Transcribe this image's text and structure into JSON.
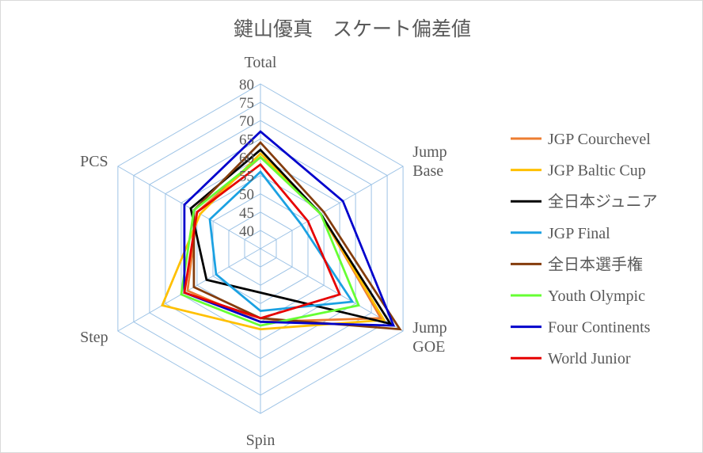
{
  "chart_data": {
    "type": "radar",
    "title": "鍵山優真　スケート偏差値",
    "axes": [
      "Total",
      "Jump Base",
      "Jump GOE",
      "Spin",
      "Step",
      "PCS"
    ],
    "axis_label_lines": [
      [
        "Total"
      ],
      [
        "Jump",
        "Base"
      ],
      [
        "Jump",
        "GOE"
      ],
      [
        "Spin"
      ],
      [
        "Step"
      ],
      [
        "PCS"
      ]
    ],
    "rlim": [
      35,
      80
    ],
    "ticks": [
      40,
      45,
      50,
      55,
      60,
      65,
      70,
      75,
      80
    ],
    "tick_labels": [
      "40",
      "45",
      "50",
      "55",
      "60",
      "65",
      "70",
      "75",
      "80"
    ],
    "grid": true,
    "legend": "right",
    "series": [
      {
        "name": "JGP Courchevel",
        "color": "#ed7d31",
        "values": [
          60,
          54,
          73,
          55,
          58,
          55
        ]
      },
      {
        "name": "JGP Baltic Cup",
        "color": "#ffc000",
        "values": [
          61,
          54,
          74,
          57,
          66,
          54
        ]
      },
      {
        "name": "全日本ジュニア",
        "color": "#000000",
        "values": [
          62,
          54,
          76,
          47,
          52,
          57
        ]
      },
      {
        "name": "JGP Final",
        "color": "#1ba1e2",
        "values": [
          56,
          48,
          64,
          52,
          49,
          51
        ]
      },
      {
        "name": "全日本選手権",
        "color": "#843c0c",
        "values": [
          64,
          55,
          79,
          54,
          56,
          56
        ]
      },
      {
        "name": "Youth Olympic",
        "color": "#66ff33",
        "values": [
          60,
          54,
          66,
          56,
          60,
          56
        ]
      },
      {
        "name": "Four Continents",
        "color": "#0000cc",
        "values": [
          67,
          61,
          77,
          55,
          59,
          59
        ]
      },
      {
        "name": "World Junior",
        "color": "#e60000",
        "values": [
          58,
          50,
          60,
          54,
          59,
          55
        ]
      }
    ]
  }
}
